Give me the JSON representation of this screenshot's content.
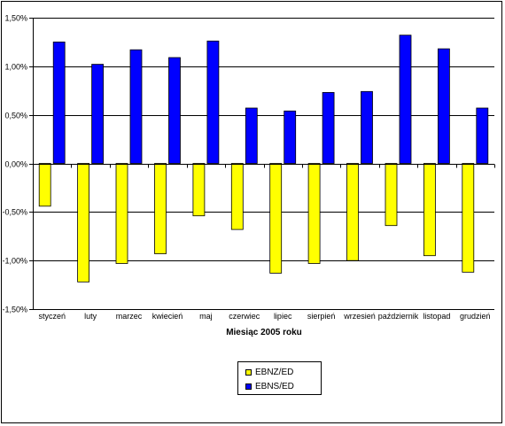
{
  "chart_data": {
    "type": "bar",
    "categories": [
      "styczeń",
      "luty",
      "marzec",
      "kwiecień",
      "maj",
      "czerwiec",
      "lipiec",
      "sierpień",
      "wrzesień",
      "październik",
      "listopad",
      "grudzień"
    ],
    "series": [
      {
        "name": "EBNZ/ED",
        "color": "#ffff00",
        "values": [
          -0.44,
          -1.22,
          -1.03,
          -0.93,
          -0.54,
          -0.68,
          -1.13,
          -1.03,
          -1.0,
          -0.64,
          -0.95,
          -1.12
        ]
      },
      {
        "name": "EBNS/ED",
        "color": "#0000ff",
        "values": [
          1.25,
          1.02,
          1.17,
          1.09,
          1.26,
          0.57,
          0.54,
          0.73,
          0.74,
          1.32,
          1.18,
          0.57
        ]
      }
    ],
    "xlabel": "Miesiąc 2005 roku",
    "ylabel": "",
    "ylim": [
      -1.5,
      1.5
    ],
    "yticks": [
      1.5,
      1.0,
      0.5,
      0.0,
      -0.5,
      -1.0,
      -1.5
    ],
    "ytick_labels": [
      "1,50%",
      "1,00%",
      "0,50%",
      "0,00%",
      "-0,50%",
      "-1,00%",
      "-1,50%"
    ],
    "grid": true,
    "legend_position": "bottom-center"
  }
}
